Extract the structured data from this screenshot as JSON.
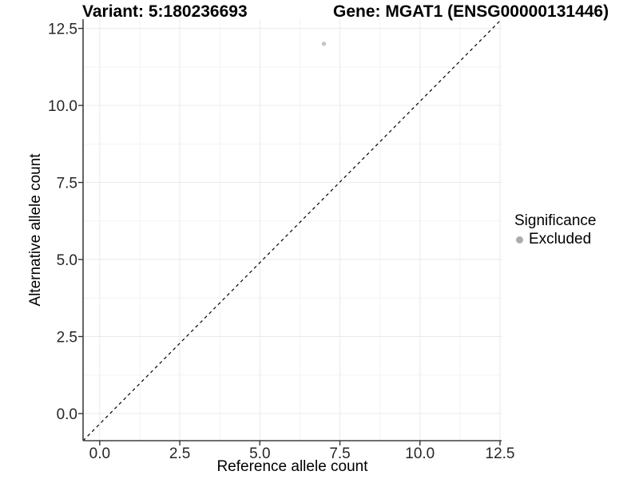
{
  "titles": {
    "variant": "Variant: 5:180236693",
    "gene": "Gene: MGAT1 (ENSG00000131446)"
  },
  "chart_data": {
    "type": "scatter",
    "xlabel": "Reference allele count",
    "ylabel": "Alternative allele count",
    "x_ticks": {
      "values": [
        0,
        2.5,
        5,
        7.5,
        10,
        12.5
      ],
      "labels": [
        "0.0",
        "2.5",
        "5.0",
        "7.5",
        "10.0",
        "12.5"
      ]
    },
    "y_ticks": {
      "values": [
        0,
        2.5,
        5,
        7.5,
        10,
        12.5
      ],
      "labels": [
        "0.0",
        "2.5",
        "5.0",
        "7.5",
        "10.0",
        "12.5"
      ]
    },
    "xlim": [
      -0.52,
      12.55
    ],
    "ylim": [
      -0.88,
      12.8
    ],
    "grid": "major+minor",
    "identity_line": {
      "type": "y=x",
      "style": "dashed",
      "color": "#000000"
    },
    "series": [
      {
        "name": "Excluded",
        "color": "#c4c4c4",
        "points": [
          {
            "x": 7,
            "y": 12
          }
        ]
      }
    ],
    "legend": {
      "title": "Significance",
      "position": "right",
      "items": [
        {
          "label": "Excluded",
          "color": "#acacac"
        }
      ]
    }
  },
  "colors": {
    "background": "#ffffff",
    "grid_major": "#e9e9e9",
    "grid_minor": "#f3f3f3",
    "axis_line": "#3f3f3f",
    "tick_mark": "#333333",
    "tick_label": "#262626",
    "text": "#000000"
  }
}
